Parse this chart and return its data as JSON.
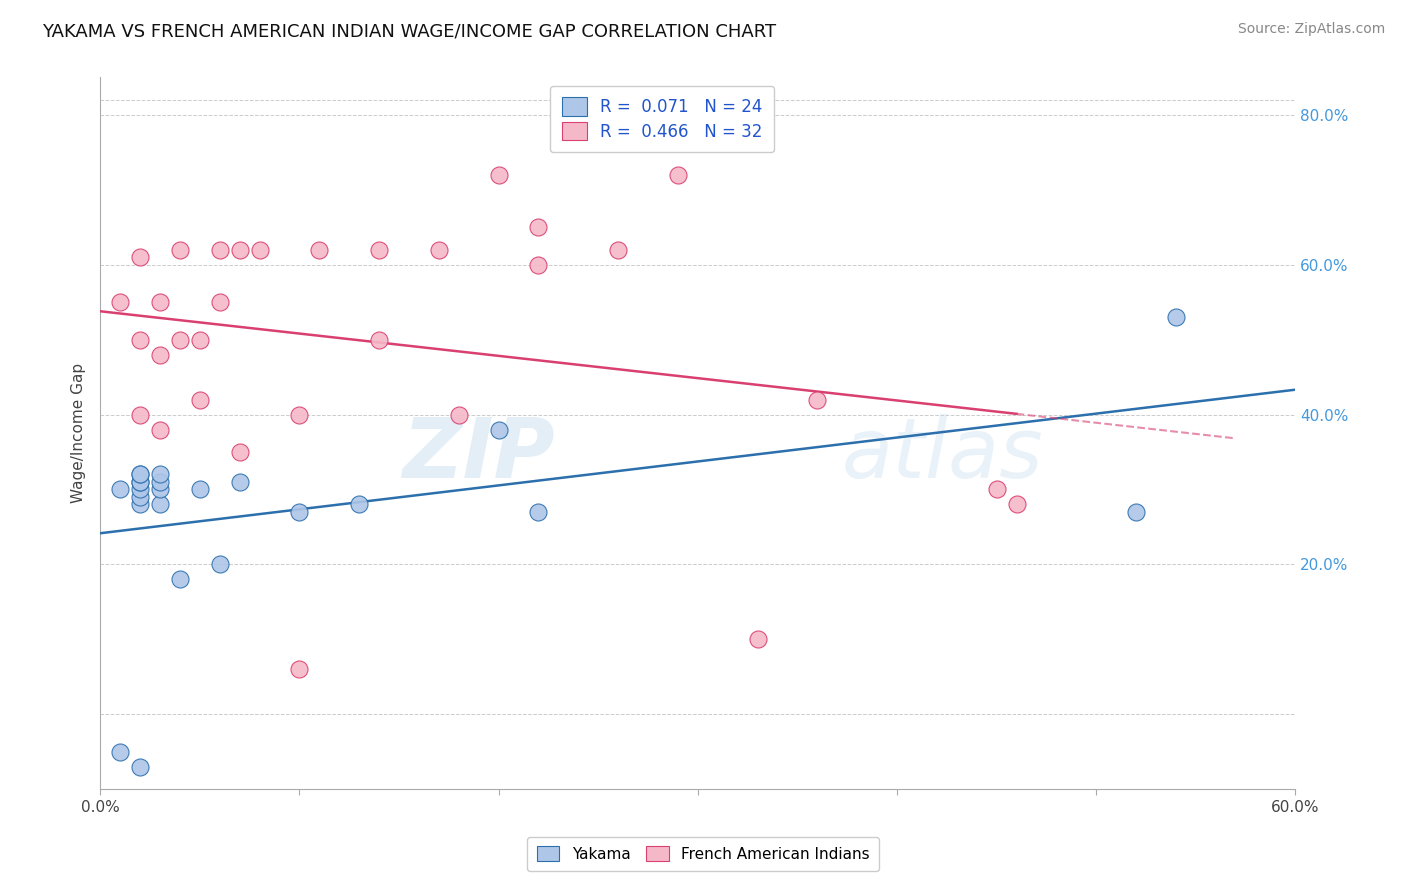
{
  "title": "YAKAMA VS FRENCH AMERICAN INDIAN WAGE/INCOME GAP CORRELATION CHART",
  "source": "Source: ZipAtlas.com",
  "ylabel": "Wage/Income Gap",
  "xlim": [
    0.0,
    0.6
  ],
  "ylim": [
    -0.1,
    0.85
  ],
  "background_color": "#ffffff",
  "grid_color": "#cccccc",
  "watermark": "ZIPatlas",
  "yakama_color": "#aec6e8",
  "french_color": "#f5b8c8",
  "line_yakama_color": "#2c6fad",
  "line_french_color": "#d94070",
  "yakama_x": [
    0.01,
    0.01,
    0.02,
    0.02,
    0.02,
    0.02,
    0.02,
    0.02,
    0.02,
    0.02,
    0.03,
    0.03,
    0.03,
    0.03,
    0.04,
    0.05,
    0.06,
    0.07,
    0.1,
    0.13,
    0.2,
    0.22,
    0.52,
    0.54
  ],
  "yakama_y": [
    -0.05,
    0.3,
    -0.07,
    0.28,
    0.29,
    0.3,
    0.31,
    0.31,
    0.32,
    0.32,
    0.28,
    0.3,
    0.31,
    0.32,
    0.18,
    0.3,
    0.2,
    0.31,
    0.27,
    0.28,
    0.38,
    0.27,
    0.27,
    0.53
  ],
  "french_x": [
    0.01,
    0.02,
    0.02,
    0.02,
    0.03,
    0.03,
    0.03,
    0.04,
    0.04,
    0.05,
    0.05,
    0.06,
    0.06,
    0.07,
    0.07,
    0.08,
    0.1,
    0.1,
    0.11,
    0.14,
    0.14,
    0.17,
    0.18,
    0.2,
    0.22,
    0.22,
    0.26,
    0.29,
    0.33,
    0.36,
    0.45,
    0.46
  ],
  "french_y": [
    0.55,
    0.4,
    0.5,
    0.61,
    0.38,
    0.48,
    0.55,
    0.5,
    0.62,
    0.42,
    0.5,
    0.55,
    0.62,
    0.35,
    0.62,
    0.62,
    0.06,
    0.4,
    0.62,
    0.5,
    0.62,
    0.62,
    0.4,
    0.72,
    0.6,
    0.65,
    0.62,
    0.72,
    0.1,
    0.42,
    0.3,
    0.28
  ]
}
